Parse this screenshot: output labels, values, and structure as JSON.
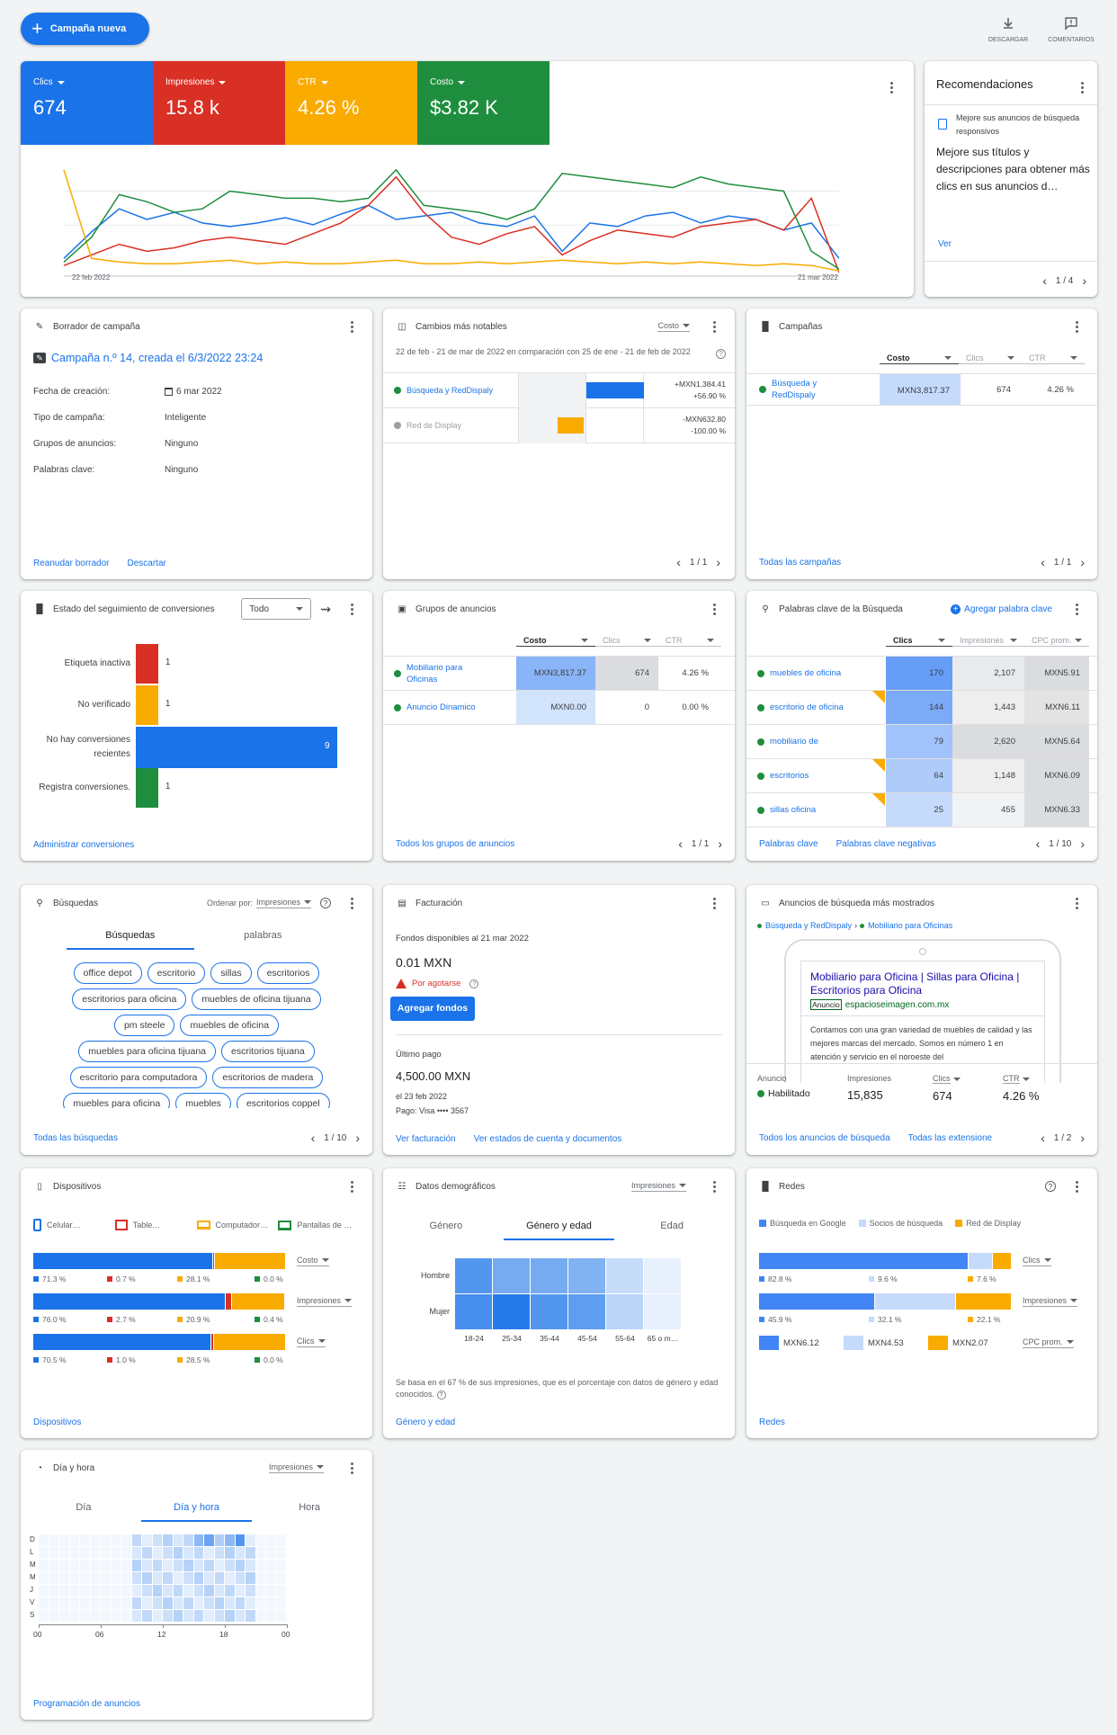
{
  "header": {
    "new_campaign": "Campaña nueva",
    "download": "DESCARGAR",
    "comments": "COMENTARIOS"
  },
  "colors": {
    "blue": "#1a73e8",
    "red": "#d93025",
    "yellow": "#f9ab00",
    "green": "#1e8e3e",
    "light_blue": "#c6dafc"
  },
  "metrics": [
    {
      "label": "Clics",
      "value": "674",
      "color": "#1a73e8"
    },
    {
      "label": "Impresiones",
      "value": "15.8 k",
      "color": "#d93025"
    },
    {
      "label": "CTR",
      "value": "4.26 %",
      "color": "#f9ab00"
    },
    {
      "label": "Costo",
      "value": "$3.82 K",
      "color": "#1e8e3e"
    }
  ],
  "chart_data": {
    "type": "line",
    "x_start": "22 feb 2022",
    "x_end": "21 mar 2022",
    "series": [
      {
        "name": "Clics",
        "color": "#1a73e8",
        "values": [
          10,
          25,
          38,
          32,
          36,
          30,
          28,
          30,
          33,
          29,
          35,
          40,
          32,
          34,
          36,
          30,
          28,
          34,
          14,
          30,
          28,
          34,
          36,
          30,
          34,
          32,
          26,
          30,
          10
        ]
      },
      {
        "name": "Impresiones",
        "color": "#d93025",
        "values": [
          6,
          12,
          18,
          14,
          16,
          20,
          22,
          20,
          18,
          24,
          30,
          40,
          56,
          36,
          22,
          18,
          24,
          28,
          12,
          20,
          26,
          24,
          22,
          28,
          30,
          32,
          26,
          44,
          2
        ]
      },
      {
        "name": "CTR",
        "color": "#f9ab00",
        "values": [
          60,
          10,
          8,
          7,
          7,
          8,
          9,
          7,
          8,
          7,
          7,
          8,
          9,
          7,
          7,
          8,
          7,
          8,
          9,
          8,
          7,
          8,
          7,
          8,
          7,
          6,
          7,
          6,
          3
        ]
      },
      {
        "name": "Costo",
        "color": "#1e8e3e",
        "values": [
          8,
          22,
          46,
          42,
          36,
          38,
          48,
          46,
          44,
          44,
          42,
          44,
          60,
          40,
          38,
          36,
          32,
          38,
          58,
          56,
          54,
          52,
          50,
          56,
          52,
          50,
          48,
          14,
          4
        ]
      }
    ]
  },
  "recs": {
    "title": "Recomendaciones",
    "sub": "Mejore sus anuncios de búsqueda responsivos",
    "text": "Mejore sus títulos y descripciones para obtener más clics en sus anuncios d…",
    "link": "Ver",
    "pager": "1 / 4"
  },
  "draft": {
    "title": "Borrador de campaña",
    "name": "Campaña n.º 14, creada el 6/3/2022 23:24",
    "rows": [
      {
        "k": "Fecha de creación:",
        "v": "6 mar 2022"
      },
      {
        "k": "Tipo de campaña:",
        "v": "Inteligente"
      },
      {
        "k": "Grupos de anuncios:",
        "v": "Ninguno"
      },
      {
        "k": "Palabras clave:",
        "v": "Ninguno"
      }
    ],
    "resume": "Reanudar borrador",
    "discard": "Descartar"
  },
  "changes": {
    "title": "Cambios más notables",
    "dd": "Costo",
    "range": "22 de feb - 21 de mar de 2022 en comparación con 25 de ene - 21 de feb de 2022",
    "rows": [
      {
        "name": "Búsqueda y RedDispaly",
        "d1": "+MXN1,384.41",
        "d2": "+56.90 %",
        "color": "#1a73e8"
      },
      {
        "name": "Red de Display",
        "d1": "-MXN632.80",
        "d2": "-100.00 %",
        "color": "#f9ab00"
      }
    ],
    "pager": "1 / 1"
  },
  "campaigns": {
    "title": "Campañas",
    "cols": [
      "Costo",
      "Clics",
      "CTR"
    ],
    "row": {
      "name": "Búsqueda y RedDispaly",
      "cost": "MXN3,817.37",
      "clicks": "674",
      "ctr": "4.26 %"
    },
    "link": "Todas las campañas",
    "pager": "1 / 1"
  },
  "conversions": {
    "title": "Estado del seguimiento de conversiones",
    "dd": "Todo",
    "bars": [
      {
        "label": "Etiqueta inactiva",
        "value": 1,
        "color": "#d93025"
      },
      {
        "label": "No verificado",
        "value": 1,
        "color": "#f9ab00"
      },
      {
        "label": "No hay conversiones recientes",
        "value": 9,
        "color": "#1a73e8"
      },
      {
        "label": "Registra conversiones.",
        "value": 1,
        "color": "#1e8e3e"
      }
    ],
    "link": "Administrar conversiones"
  },
  "adgroups": {
    "title": "Grupos de anuncios",
    "cols": [
      "Costo",
      "Clics",
      "CTR"
    ],
    "rows": [
      {
        "name": "Mobiliario para Oficinas",
        "cost": "MXN3,817.37",
        "clicks": "674",
        "ctr": "4.26 %"
      },
      {
        "name": "Anuncio Dinamico",
        "cost": "MXN0.00",
        "clicks": "0",
        "ctr": "0.00 %"
      }
    ],
    "link": "Todos los grupos de anuncios",
    "pager": "1 / 1"
  },
  "keywords": {
    "title": "Palabras clave de la Búsqueda",
    "add": "Agregar palabra clave",
    "cols": [
      "Clics",
      "Impresiones",
      "CPC prom."
    ],
    "rows": [
      {
        "kw": "muebles de oficina",
        "clicks": "170",
        "impr": "2,107",
        "cpc": "MXN5.91"
      },
      {
        "kw": "escritorio de oficina",
        "clicks": "144",
        "impr": "1,443",
        "cpc": "MXN6.11"
      },
      {
        "kw": "mobiliario de",
        "clicks": "79",
        "impr": "2,620",
        "cpc": "MXN5.64"
      },
      {
        "kw": "escritorios",
        "clicks": "64",
        "impr": "1,148",
        "cpc": "MXN6.09"
      },
      {
        "kw": "sillas oficina",
        "clicks": "25",
        "impr": "455",
        "cpc": "MXN6.33"
      }
    ],
    "link1": "Palabras clave",
    "link2": "Palabras clave negativas",
    "pager": "1 / 10"
  },
  "searches": {
    "title": "Búsquedas",
    "order": "Ordenar por:",
    "dd": "Impresiones",
    "tab1": "Búsquedas",
    "tab2": "palabras",
    "chips": [
      "office depot",
      "escritorio",
      "sillas",
      "escritorios",
      "escritorios para oficina",
      "muebles de oficina tijuana",
      "pm steele",
      "muebles de oficina",
      "muebles para oficina tijuana",
      "escritorios tijuana",
      "escritorio para computadora",
      "escritorios de madera",
      "muebles para oficina",
      "muebles",
      "escritorios coppel"
    ],
    "link": "Todas las búsquedas",
    "pager": "1 / 10"
  },
  "billing": {
    "title": "Facturación",
    "funds_label": "Fondos disponibles al 21 mar 2022",
    "funds": "0.01 MXN",
    "warn": "Por agotarse",
    "add": "Agregar fondos",
    "last_label": "Último pago",
    "last": "4,500.00 MXN",
    "date": "el 23 feb 2022",
    "pay": "Pago: Visa •••• 3567",
    "link1": "Ver facturación",
    "link2": "Ver estados de cuenta y documentos"
  },
  "topads": {
    "title": "Anuncios de búsqueda más mostrados",
    "crumb1": "Búsqueda y RedDispaly",
    "crumb2": "Mobiliario para Oficinas",
    "headline": "Mobiliario para Oficina | Sillas para Oficina | Escritorios para Oficina",
    "badge": "Anuncio",
    "url": "espacioseimagen.com.mx",
    "desc": "Contamos con una gran variedad de muebles de calidad y las mejores marcas del mercado. Somos en número 1 en atención y servicio en el noroeste del",
    "stats": [
      {
        "label": "Anuncio",
        "value": "Habilitado"
      },
      {
        "label": "Impresiones",
        "value": "15,835"
      },
      {
        "label": "Clics",
        "value": "674"
      },
      {
        "label": "CTR",
        "value": "4.26 %"
      }
    ],
    "link1": "Todos los anuncios de búsqueda",
    "link2": "Todas las extensione",
    "pager": "1 / 2"
  },
  "devices": {
    "title": "Dispositivos",
    "legend": [
      "Celular…",
      "Table…",
      "Computador…",
      "Pantallas de …"
    ],
    "rows": [
      {
        "dd": "Costo",
        "vals": [
          71.3,
          0.7,
          28.1,
          0.0
        ],
        "labels": [
          "71.3 %",
          "0.7 %",
          "28.1 %",
          "0.0 %"
        ]
      },
      {
        "dd": "Impresiones",
        "vals": [
          76.0,
          2.7,
          20.9,
          0.4
        ],
        "labels": [
          "76.0 %",
          "2.7 %",
          "20.9 %",
          "0.4 %"
        ]
      },
      {
        "dd": "Clics",
        "vals": [
          70.5,
          1.0,
          28.5,
          0.0
        ],
        "labels": [
          "70.5 %",
          "1.0 %",
          "28.5 %",
          "0.0 %"
        ]
      }
    ],
    "link": "Dispositivos"
  },
  "demo": {
    "title": "Datos demográficos",
    "dd": "Impresiones",
    "tabs": [
      "Género",
      "Género y edad",
      "Edad"
    ],
    "rows": [
      "Hombre",
      "Mujer"
    ],
    "cols": [
      "18-24",
      "25-34",
      "35-44",
      "45-54",
      "55-64",
      "65 o m…"
    ],
    "heat": [
      [
        0.75,
        0.6,
        0.6,
        0.55,
        0.25,
        0.12
      ],
      [
        0.8,
        0.95,
        0.75,
        0.7,
        0.3,
        0.14
      ]
    ],
    "note": "Se basa en el 67 % de sus impresiones, que es el porcentaje con datos de género y edad conocidos.",
    "link": "Género y edad"
  },
  "networks": {
    "title": "Redes",
    "legend": [
      "Búsqueda en Google",
      "Socios de búsqueda",
      "Red de Display"
    ],
    "rows": [
      {
        "dd": "Clics",
        "vals": [
          82.8,
          9.6,
          7.6
        ],
        "labels": [
          "82.8 %",
          "9.6 %",
          "7.6 %"
        ]
      },
      {
        "dd": "Impresiones",
        "vals": [
          45.9,
          32.1,
          22.1
        ],
        "labels": [
          "45.9 %",
          "32.1 %",
          "22.1 %"
        ]
      }
    ],
    "cpc": [
      "MXN6.12",
      "MXN4.53",
      "MXN2.07"
    ],
    "cpc_dd": "CPC prom.",
    "link": "Redes"
  },
  "dayhour": {
    "title": "Día y hora",
    "dd": "Impresiones",
    "tabs": [
      "Día",
      "Día y hora",
      "Hora"
    ],
    "days": [
      "D",
      "L",
      "M",
      "M",
      "J",
      "V",
      "S"
    ],
    "ticks": [
      "00",
      "06",
      "12",
      "18",
      "00"
    ],
    "link": "Programación de anuncios"
  }
}
